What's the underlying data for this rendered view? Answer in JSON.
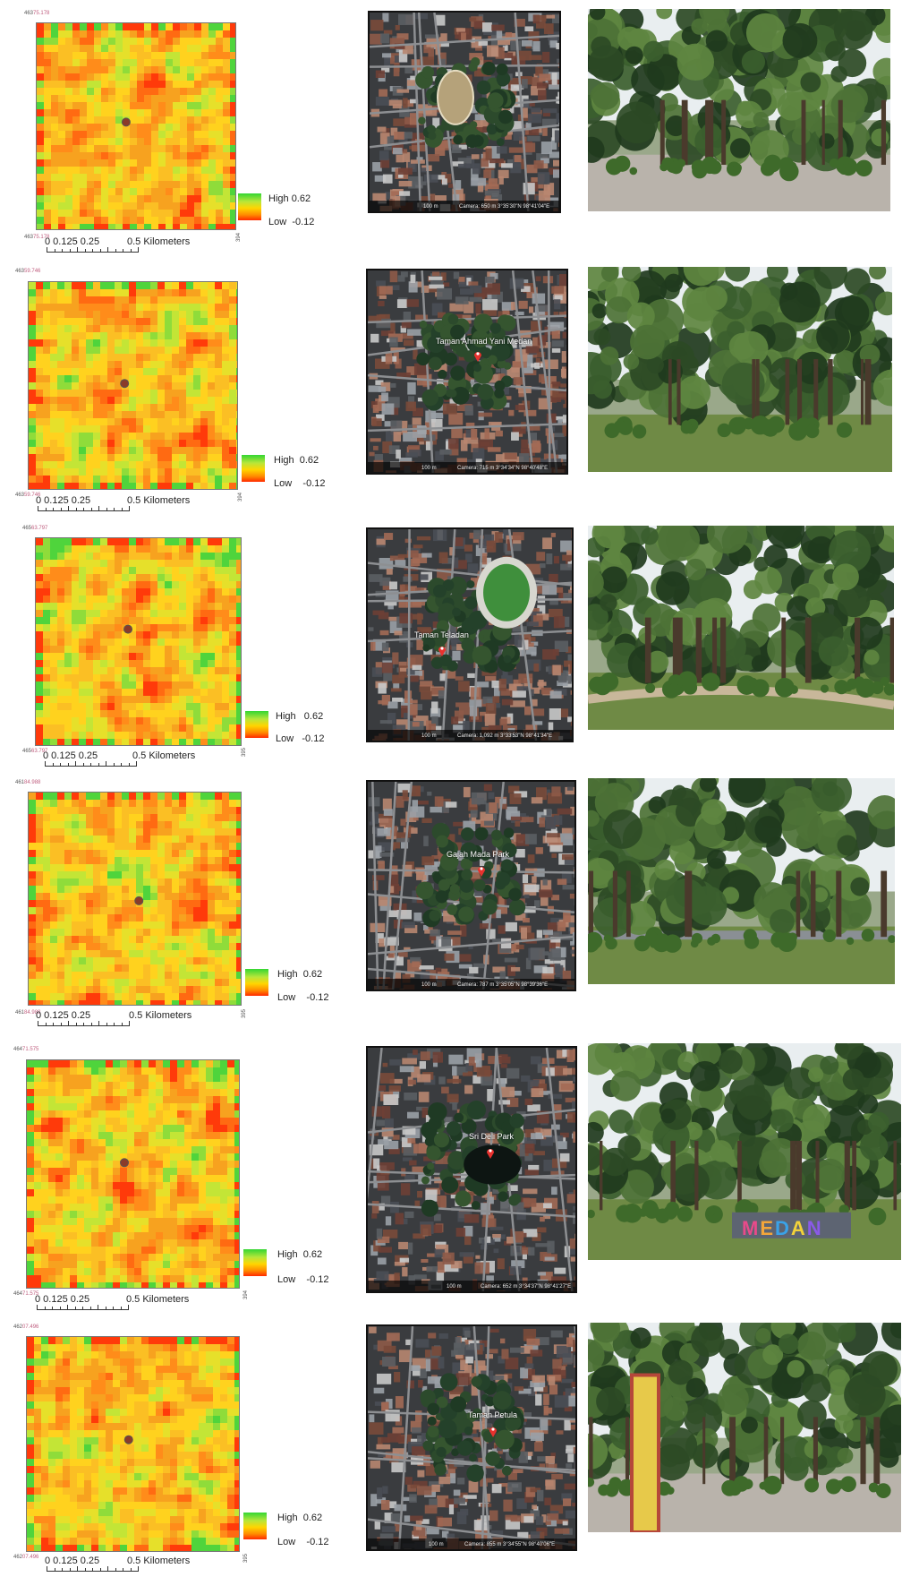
{
  "legend": {
    "high_label": "High",
    "high_value": "0.62",
    "low_label": "Low",
    "low_value": "-0.12"
  },
  "scale": {
    "ticks": "0  0.125 0.25",
    "half": "0.5 Kilometers"
  },
  "panels": [
    {
      "coord_top": "463",
      "coord_top_suffix": "75.178",
      "coord_bottom": "463",
      "coord_bottom_suffix": "75.178",
      "coord_right": "394",
      "sat_place": "",
      "sat_scale": "100 m",
      "sat_camera": "Camera: 650 m  3°35'30\"N 98°41'04\"E",
      "photo_sign": ""
    },
    {
      "coord_top": "463",
      "coord_top_suffix": "59.746",
      "coord_bottom": "463",
      "coord_bottom_suffix": "59.746",
      "coord_right": "394",
      "sat_place": "Taman Ahmad Yani Medan",
      "sat_scale": "100 m",
      "sat_camera": "Camera: 715 m  3°34'34\"N 98°40'48\"E",
      "photo_sign": ""
    },
    {
      "coord_top": "465",
      "coord_top_suffix": "63.797",
      "coord_bottom": "465",
      "coord_bottom_suffix": "63.797",
      "coord_right": "395",
      "sat_place": "Taman Teladan",
      "sat_scale": "100 m",
      "sat_camera": "Camera: 1,092 m  3°33'53\"N 98°41'34\"E",
      "photo_sign": ""
    },
    {
      "coord_top": "461",
      "coord_top_suffix": "84.988",
      "coord_bottom": "461",
      "coord_bottom_suffix": "84.988",
      "coord_right": "395",
      "sat_place": "Gajah Mada Park",
      "sat_scale": "100 m",
      "sat_camera": "Camera: 787 m  3°35'05\"N 98°39'36\"E",
      "photo_sign": ""
    },
    {
      "coord_top": "464",
      "coord_top_suffix": "71.575",
      "coord_bottom": "464",
      "coord_bottom_suffix": "71.575",
      "coord_right": "394",
      "sat_place": "Sri Deli Park",
      "sat_scale": "100 m",
      "sat_camera": "Camera: 652 m  3°34'37\"N 98°41'27\"E",
      "photo_sign": "MEDAN"
    },
    {
      "coord_top": "462",
      "coord_top_suffix": "07.496",
      "coord_bottom": "462",
      "coord_bottom_suffix": "07.496",
      "coord_right": "395",
      "sat_place": "Taman Petula",
      "sat_scale": "100 m",
      "sat_camera": "Camera: 855 m  3°34'55\"N 98°40'06\"E",
      "photo_sign": ""
    }
  ],
  "colors": {
    "high": "#33d633",
    "mid": "#ffd500",
    "low": "#ff2a00",
    "base": "#f4a21e",
    "pin": "#e8322e"
  }
}
